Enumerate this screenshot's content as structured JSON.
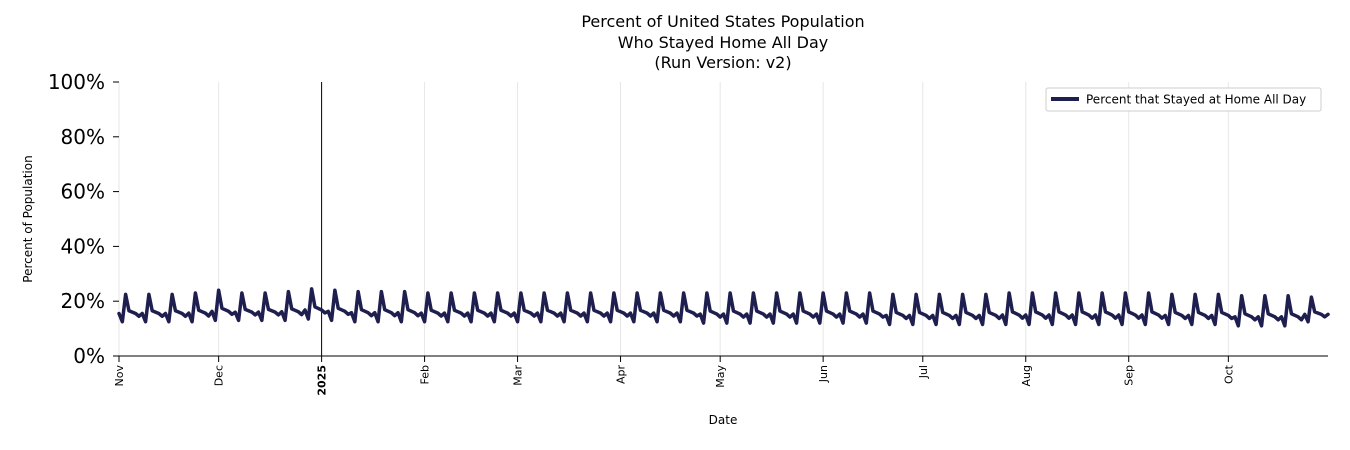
{
  "chart_data": {
    "type": "line",
    "title_lines": [
      "Percent of United States Population",
      "Who Stayed Home All Day",
      "(Run Version: v2)"
    ],
    "xlabel": "Date",
    "ylabel": "Percent of Population",
    "x_range": [
      "2024-11-01",
      "2025-10-31"
    ],
    "ylim": [
      0,
      100
    ],
    "y_ticks": [
      {
        "value": 0,
        "label": "0%"
      },
      {
        "value": 20,
        "label": "20%"
      },
      {
        "value": 40,
        "label": "40%"
      },
      {
        "value": 60,
        "label": "60%"
      },
      {
        "value": 80,
        "label": "80%"
      },
      {
        "value": 100,
        "label": "100%"
      }
    ],
    "x_ticks": [
      {
        "date": "2024-11-01",
        "label": "Nov",
        "bold": false
      },
      {
        "date": "2024-12-01",
        "label": "Dec",
        "bold": false
      },
      {
        "date": "2025-01-01",
        "label": "2025",
        "bold": true
      },
      {
        "date": "2025-02-01",
        "label": "Feb",
        "bold": false
      },
      {
        "date": "2025-03-01",
        "label": "Mar",
        "bold": false
      },
      {
        "date": "2025-04-01",
        "label": "Apr",
        "bold": false
      },
      {
        "date": "2025-05-01",
        "label": "May",
        "bold": false
      },
      {
        "date": "2025-06-01",
        "label": "Jun",
        "bold": false
      },
      {
        "date": "2025-07-01",
        "label": "Jul",
        "bold": false
      },
      {
        "date": "2025-08-01",
        "label": "Aug",
        "bold": false
      },
      {
        "date": "2025-09-01",
        "label": "Sep",
        "bold": false
      },
      {
        "date": "2025-10-01",
        "label": "Oct",
        "bold": false
      }
    ],
    "vertical_marker_date": "2025-01-01",
    "grid": "vertical",
    "legend_position": "top-right",
    "series": [
      {
        "name": "Percent that Stayed at Home All Day",
        "color": "#1f1f4f",
        "x_start": "2024-11-01",
        "x_end": "2025-10-31",
        "periodicity_days": 7,
        "weekly_pattern_description_values": [
          15.5,
          12.5,
          22.5,
          16.5,
          16.0,
          15.5,
          14.5
        ],
        "peak_values_by_week": [
          22.5,
          22.5,
          22.5,
          23.0,
          24.0,
          23.0,
          23.0,
          23.5,
          24.5,
          24.0,
          23.5,
          23.5,
          23.5,
          23.0,
          23.0,
          23.0,
          23.0,
          23.0,
          23.0,
          23.0,
          23.0,
          23.0,
          23.0,
          23.0,
          23.0,
          23.0,
          23.0,
          23.0,
          23.0,
          23.0,
          23.0,
          23.0,
          23.0,
          22.5,
          22.5,
          22.5,
          22.5,
          22.5,
          23.0,
          23.0,
          23.0,
          23.0,
          23.0,
          23.0,
          23.0,
          22.5,
          22.5,
          22.5,
          22.0,
          22.0,
          22.0,
          21.5
        ],
        "trough_values_by_week": [
          12.5,
          12.5,
          12.5,
          12.5,
          13.0,
          13.0,
          13.0,
          13.0,
          13.5,
          13.0,
          12.5,
          12.5,
          12.5,
          12.5,
          12.5,
          12.5,
          12.5,
          12.5,
          12.5,
          12.5,
          12.5,
          12.5,
          12.5,
          12.5,
          12.5,
          12.0,
          12.0,
          12.0,
          12.0,
          12.0,
          12.0,
          12.0,
          12.0,
          11.5,
          11.5,
          11.5,
          11.5,
          11.5,
          11.5,
          11.5,
          11.5,
          11.5,
          11.5,
          11.5,
          11.5,
          11.5,
          11.5,
          11.5,
          11.0,
          11.0,
          11.0,
          12.5
        ]
      }
    ]
  }
}
